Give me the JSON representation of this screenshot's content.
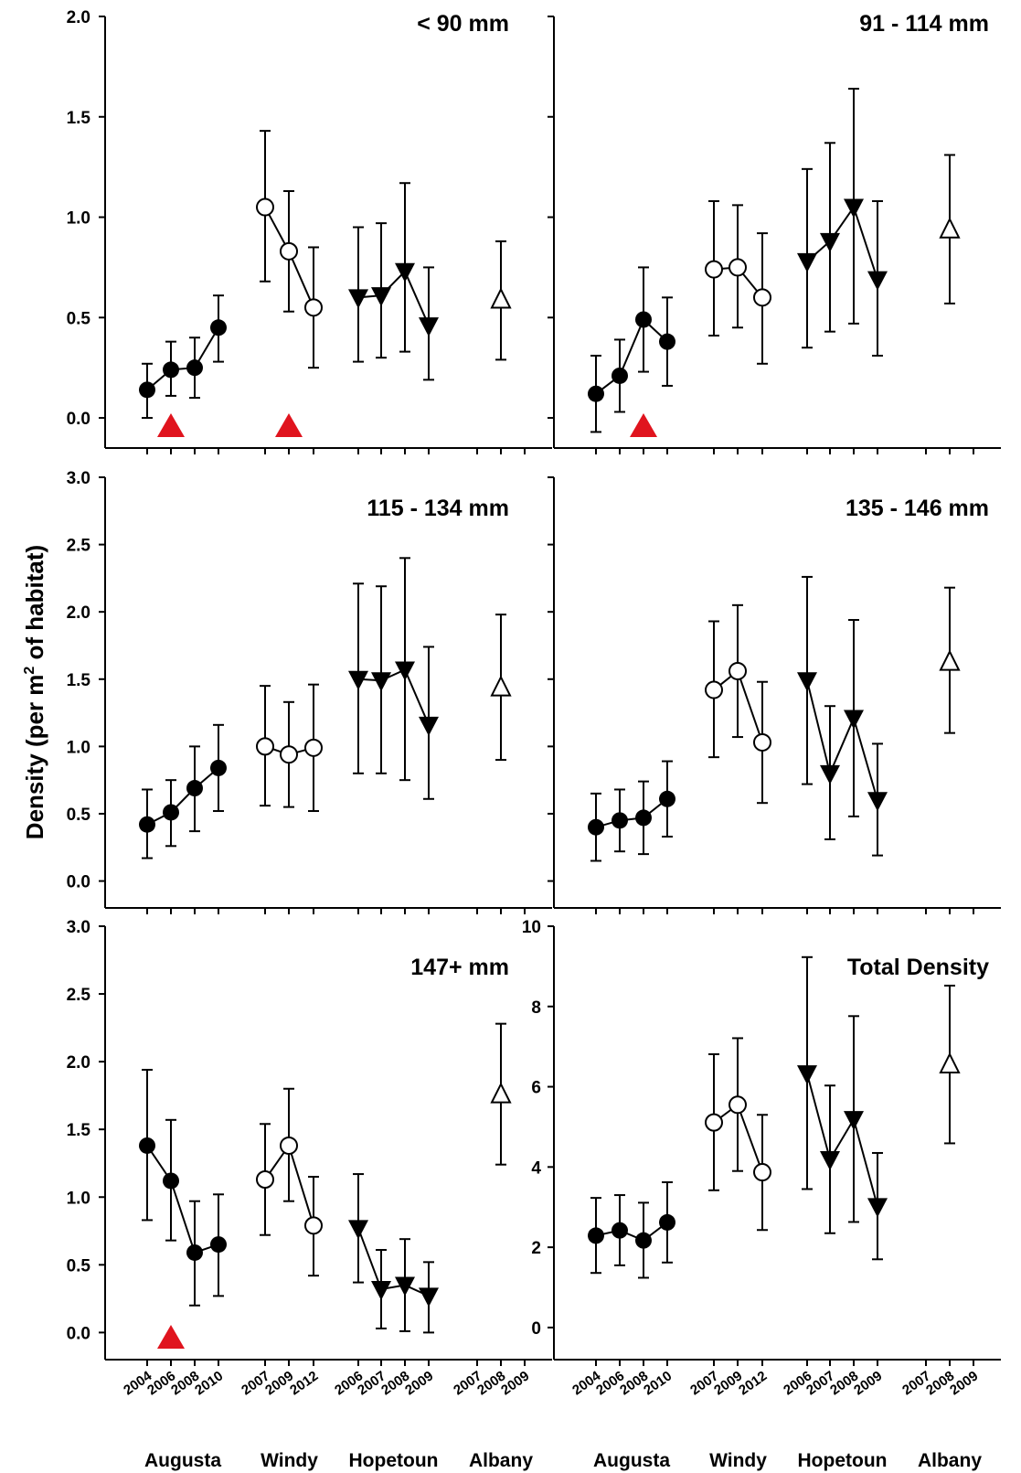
{
  "ylabel": {
    "main": "Density (per m",
    "sup": "2",
    "end": " of habitat)"
  },
  "sites": [
    "Augusta",
    "Windy",
    "Hopetoun",
    "Albany"
  ],
  "year_groups": [
    [
      "2004",
      "2006",
      "2008",
      "2010"
    ],
    [
      "2007",
      "2009",
      "2012"
    ],
    [
      "2006",
      "2007",
      "2008",
      "2009"
    ],
    [
      "2007",
      "2008",
      "2009"
    ]
  ],
  "colors": {
    "line": "#000000",
    "marker_event": "#e0141e"
  },
  "markers": {
    "Augusta": "filled-circle",
    "Windy": "open-circle",
    "Hopetoun": "filled-triangle-down",
    "Albany": "open-triangle-up"
  },
  "chart_data": [
    {
      "type": "scatter",
      "title": "< 90 mm",
      "ylim": [
        -0.15,
        2.0
      ],
      "yticks": [
        "0.0",
        "0.5",
        "1.0",
        "1.5",
        "2.0"
      ],
      "series": [
        {
          "site": "Augusta",
          "x": [
            "2004",
            "2006",
            "2008",
            "2010"
          ],
          "y": [
            0.14,
            0.24,
            0.25,
            0.45
          ],
          "lo": [
            0.0,
            0.11,
            0.1,
            0.28
          ],
          "hi": [
            0.27,
            0.38,
            0.4,
            0.61
          ]
        },
        {
          "site": "Windy",
          "x": [
            "2007",
            "2009",
            "2012"
          ],
          "y": [
            1.05,
            0.83,
            0.55
          ],
          "lo": [
            0.68,
            0.53,
            0.25
          ],
          "hi": [
            1.43,
            1.13,
            0.85
          ]
        },
        {
          "site": "Hopetoun",
          "x": [
            "2006",
            "2007",
            "2008",
            "2009"
          ],
          "y": [
            0.6,
            0.61,
            0.73,
            0.46
          ],
          "lo": [
            0.28,
            0.3,
            0.33,
            0.19
          ],
          "hi": [
            0.95,
            0.97,
            1.17,
            0.75
          ]
        },
        {
          "site": "Albany",
          "x": [
            "2008"
          ],
          "y": [
            0.59
          ],
          "lo": [
            0.29
          ],
          "hi": [
            0.88
          ]
        }
      ],
      "events": [
        {
          "site": "Augusta",
          "x": "2006"
        },
        {
          "site": "Windy",
          "x": "2009"
        }
      ]
    },
    {
      "type": "scatter",
      "title": "91 - 114 mm",
      "ylim": [
        -0.15,
        2.0
      ],
      "yticks": [],
      "series": [
        {
          "site": "Augusta",
          "x": [
            "2004",
            "2006",
            "2008",
            "2010"
          ],
          "y": [
            0.12,
            0.21,
            0.49,
            0.38
          ],
          "lo": [
            -0.07,
            0.03,
            0.23,
            0.16
          ],
          "hi": [
            0.31,
            0.39,
            0.75,
            0.6
          ]
        },
        {
          "site": "Windy",
          "x": [
            "2007",
            "2009",
            "2012"
          ],
          "y": [
            0.74,
            0.75,
            0.6
          ],
          "lo": [
            0.41,
            0.45,
            0.27
          ],
          "hi": [
            1.08,
            1.06,
            0.92
          ]
        },
        {
          "site": "Hopetoun",
          "x": [
            "2006",
            "2007",
            "2008",
            "2009"
          ],
          "y": [
            0.78,
            0.88,
            1.05,
            0.69
          ],
          "lo": [
            0.35,
            0.43,
            0.47,
            0.31
          ],
          "hi": [
            1.24,
            1.37,
            1.64,
            1.08
          ]
        },
        {
          "site": "Albany",
          "x": [
            "2008"
          ],
          "y": [
            0.94
          ],
          "lo": [
            0.57
          ],
          "hi": [
            1.31
          ]
        }
      ],
      "events": [
        {
          "site": "Augusta",
          "x": "2008"
        }
      ]
    },
    {
      "type": "scatter",
      "title": "115 - 134 mm",
      "ylim": [
        -0.2,
        3.0
      ],
      "yticks": [
        "0.0",
        "0.5",
        "1.0",
        "1.5",
        "2.0",
        "2.5",
        "3.0"
      ],
      "series": [
        {
          "site": "Augusta",
          "x": [
            "2004",
            "2006",
            "2008",
            "2010"
          ],
          "y": [
            0.42,
            0.51,
            0.69,
            0.84
          ],
          "lo": [
            0.17,
            0.26,
            0.37,
            0.52
          ],
          "hi": [
            0.68,
            0.75,
            1.0,
            1.16
          ]
        },
        {
          "site": "Windy",
          "x": [
            "2007",
            "2009",
            "2012"
          ],
          "y": [
            1.0,
            0.94,
            0.99
          ],
          "lo": [
            0.56,
            0.55,
            0.52
          ],
          "hi": [
            1.45,
            1.33,
            1.46
          ]
        },
        {
          "site": "Hopetoun",
          "x": [
            "2006",
            "2007",
            "2008",
            "2009"
          ],
          "y": [
            1.5,
            1.49,
            1.57,
            1.16
          ],
          "lo": [
            0.8,
            0.8,
            0.75,
            0.61
          ],
          "hi": [
            2.21,
            2.19,
            2.4,
            1.74
          ]
        },
        {
          "site": "Albany",
          "x": [
            "2008"
          ],
          "y": [
            1.44
          ],
          "lo": [
            0.9
          ],
          "hi": [
            1.98
          ]
        }
      ],
      "events": []
    },
    {
      "type": "scatter",
      "title": "135 - 146 mm",
      "ylim": [
        -0.2,
        3.0
      ],
      "yticks": [],
      "series": [
        {
          "site": "Augusta",
          "x": [
            "2004",
            "2006",
            "2008",
            "2010"
          ],
          "y": [
            0.4,
            0.45,
            0.47,
            0.61
          ],
          "lo": [
            0.15,
            0.22,
            0.2,
            0.33
          ],
          "hi": [
            0.65,
            0.68,
            0.74,
            0.89
          ]
        },
        {
          "site": "Windy",
          "x": [
            "2007",
            "2009",
            "2012"
          ],
          "y": [
            1.42,
            1.56,
            1.03
          ],
          "lo": [
            0.92,
            1.07,
            0.58
          ],
          "hi": [
            1.93,
            2.05,
            1.48
          ]
        },
        {
          "site": "Hopetoun",
          "x": [
            "2006",
            "2007",
            "2008",
            "2009"
          ],
          "y": [
            1.49,
            0.8,
            1.21,
            0.6
          ],
          "lo": [
            0.72,
            0.31,
            0.48,
            0.19
          ],
          "hi": [
            2.26,
            1.3,
            1.94,
            1.02
          ]
        },
        {
          "site": "Albany",
          "x": [
            "2008"
          ],
          "y": [
            1.63
          ],
          "lo": [
            1.1
          ],
          "hi": [
            2.18
          ]
        }
      ],
      "events": []
    },
    {
      "type": "scatter",
      "title": "147+ mm",
      "ylim": [
        -0.2,
        3.0
      ],
      "yticks": [
        "0.0",
        "0.5",
        "1.0",
        "1.5",
        "2.0",
        "2.5",
        "3.0"
      ],
      "series": [
        {
          "site": "Augusta",
          "x": [
            "2004",
            "2006",
            "2008",
            "2010"
          ],
          "y": [
            1.38,
            1.12,
            0.59,
            0.65
          ],
          "lo": [
            0.83,
            0.68,
            0.2,
            0.27
          ],
          "hi": [
            1.94,
            1.57,
            0.97,
            1.02
          ]
        },
        {
          "site": "Windy",
          "x": [
            "2007",
            "2009",
            "2012"
          ],
          "y": [
            1.13,
            1.38,
            0.79
          ],
          "lo": [
            0.72,
            0.97,
            0.42
          ],
          "hi": [
            1.54,
            1.8,
            1.15
          ]
        },
        {
          "site": "Hopetoun",
          "x": [
            "2006",
            "2007",
            "2008",
            "2009"
          ],
          "y": [
            0.77,
            0.32,
            0.35,
            0.27
          ],
          "lo": [
            0.37,
            0.03,
            0.01,
            0.0
          ],
          "hi": [
            1.17,
            0.61,
            0.69,
            0.52
          ]
        },
        {
          "site": "Albany",
          "x": [
            "2008"
          ],
          "y": [
            1.76
          ],
          "lo": [
            1.24
          ],
          "hi": [
            2.28
          ]
        }
      ],
      "events": [
        {
          "site": "Augusta",
          "x": "2006"
        }
      ]
    },
    {
      "type": "scatter",
      "title": "Total Density",
      "ylim": [
        -0.8,
        10
      ],
      "yticks": [
        "0",
        "2",
        "4",
        "6",
        "8",
        "10"
      ],
      "series": [
        {
          "site": "Augusta",
          "x": [
            "2004",
            "2006",
            "2008",
            "2010"
          ],
          "y": [
            2.29,
            2.42,
            2.17,
            2.62
          ],
          "lo": [
            1.36,
            1.55,
            1.24,
            1.62
          ],
          "hi": [
            3.23,
            3.3,
            3.11,
            3.62
          ]
        },
        {
          "site": "Windy",
          "x": [
            "2007",
            "2009",
            "2012"
          ],
          "y": [
            5.11,
            5.55,
            3.87
          ],
          "lo": [
            3.42,
            3.9,
            2.43
          ],
          "hi": [
            6.81,
            7.21,
            5.3
          ]
        },
        {
          "site": "Hopetoun",
          "x": [
            "2006",
            "2007",
            "2008",
            "2009"
          ],
          "y": [
            6.33,
            4.19,
            5.19,
            3.02
          ],
          "lo": [
            3.45,
            2.35,
            2.63,
            1.7
          ],
          "hi": [
            9.23,
            6.03,
            7.76,
            4.35
          ]
        },
        {
          "site": "Albany",
          "x": [
            "2008"
          ],
          "y": [
            6.56
          ],
          "lo": [
            4.59
          ],
          "hi": [
            8.52
          ]
        }
      ],
      "events": []
    }
  ]
}
